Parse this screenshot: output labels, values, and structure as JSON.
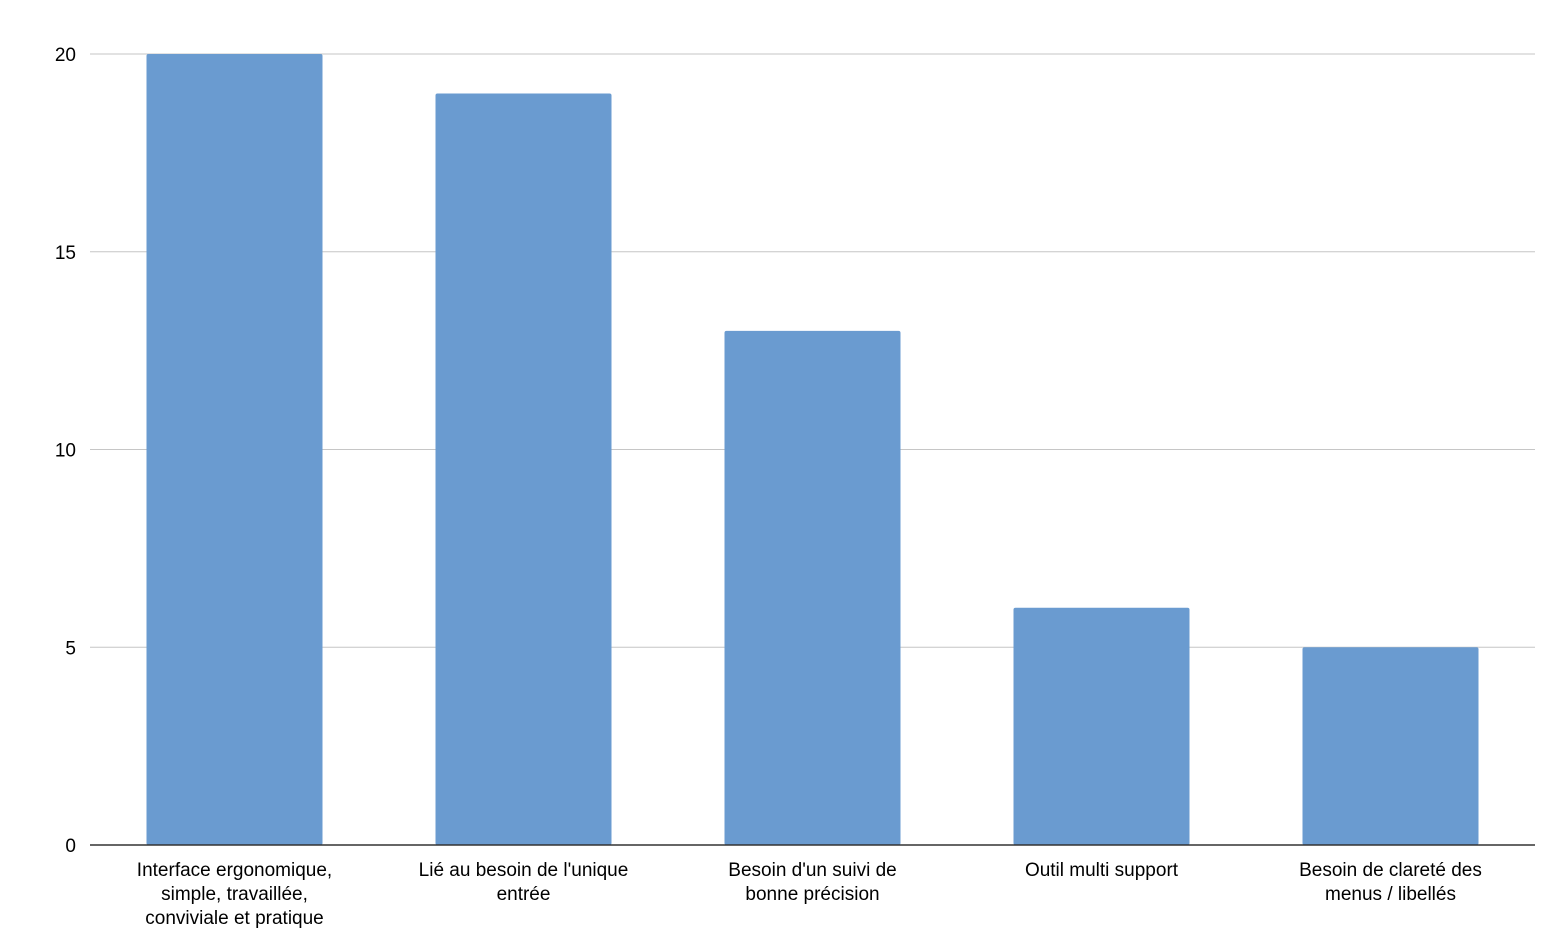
{
  "chart_data": {
    "type": "bar",
    "categories": [
      [
        "Interface ergonomique,",
        "simple, travaillée,",
        "conviviale et pratique"
      ],
      [
        "Lié au besoin de l'unique",
        "entrée"
      ],
      [
        "Besoin d'un suivi de",
        "bonne précision"
      ],
      [
        "Outil multi support"
      ],
      [
        "Besoin de clareté des",
        "menus / libellés"
      ]
    ],
    "values": [
      20,
      19,
      13,
      6,
      5
    ],
    "ylim": [
      0,
      20
    ],
    "yticks": [
      0,
      5,
      10,
      15,
      20
    ],
    "grid": true,
    "legend": "none",
    "colors": {
      "bar": "#6a9bd0",
      "grid": "#c6c6c6",
      "axis": "#333333",
      "text": "#000000"
    }
  }
}
